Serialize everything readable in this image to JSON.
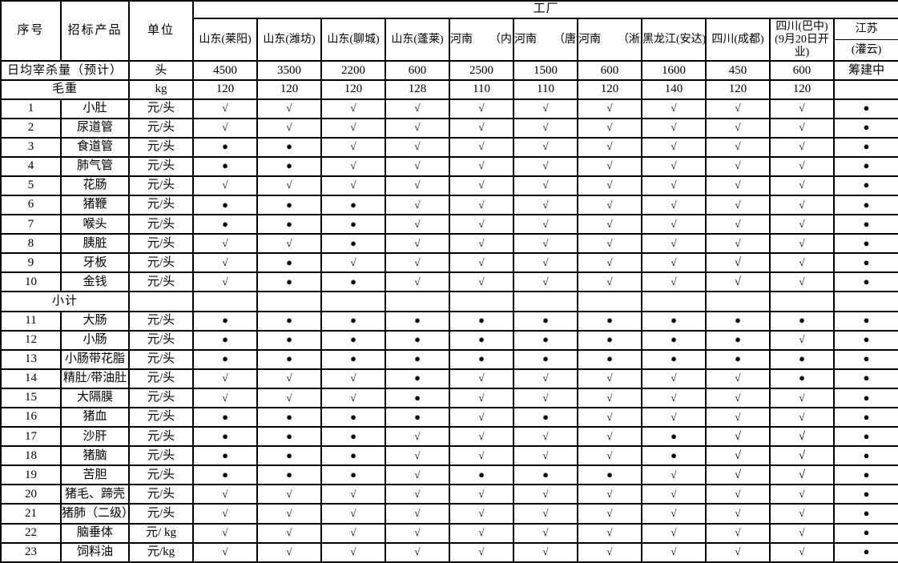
{
  "table": {
    "corner": {
      "serial": "序号",
      "product": "招标产品",
      "unit": "单位"
    },
    "factory_group_label": "工厂",
    "factories": [
      "山东(莱阳)",
      "山东(潍坊)",
      "山东(聊城)",
      "山东(蓬莱)",
      "河南　　（内乡）",
      "河南　　（唐河）",
      "河南　　（淅川）",
      "黑龙江(安达)",
      "四川(成都)",
      "四川(巴中)(9月20日开业)"
    ],
    "jiangsu": {
      "province": "江苏",
      "city": "(灌云)"
    },
    "slaughter_row": {
      "label": "日均宰杀量（预计）",
      "unit": "头",
      "values": [
        "4500",
        "3500",
        "2200",
        "600",
        "2500",
        "1500",
        "600",
        "1600",
        "450",
        "600",
        "筹建中"
      ]
    },
    "weight_row": {
      "label": "毛重",
      "unit": "kg",
      "values": [
        "120",
        "120",
        "120",
        "128",
        "110",
        "110",
        "120",
        "140",
        "120",
        "120",
        ""
      ]
    },
    "legend": {
      "check": "√",
      "dot": "●"
    },
    "subtotal_label": "小计",
    "products": [
      {
        "no": "1",
        "name": "小肚",
        "unit": "元/头",
        "marks": [
          "√",
          "√",
          "√",
          "√",
          "√",
          "√",
          "√",
          "√",
          "√",
          "√",
          "●"
        ]
      },
      {
        "no": "2",
        "name": "尿道管",
        "unit": "元/头",
        "marks": [
          "√",
          "√",
          "√",
          "√",
          "√",
          "√",
          "√",
          "√",
          "√",
          "√",
          "●"
        ]
      },
      {
        "no": "3",
        "name": "食道管",
        "unit": "元/头",
        "marks": [
          "●",
          "●",
          "√",
          "√",
          "√",
          "√",
          "√",
          "√",
          "√",
          "√",
          "●"
        ]
      },
      {
        "no": "4",
        "name": "肺气管",
        "unit": "元/头",
        "marks": [
          "●",
          "●",
          "√",
          "√",
          "√",
          "√",
          "√",
          "√",
          "√",
          "√",
          "●"
        ]
      },
      {
        "no": "5",
        "name": "花肠",
        "unit": "元/头",
        "marks": [
          "√",
          "√",
          "√",
          "√",
          "√",
          "√",
          "√",
          "√",
          "√",
          "√",
          "●"
        ]
      },
      {
        "no": "6",
        "name": "猪鞭",
        "unit": "元/头",
        "marks": [
          "●",
          "●",
          "●",
          "√",
          "√",
          "√",
          "√",
          "√",
          "√",
          "√",
          "●"
        ]
      },
      {
        "no": "7",
        "name": "喉头",
        "unit": "元/头",
        "marks": [
          "●",
          "●",
          "●",
          "√",
          "√",
          "√",
          "√",
          "√",
          "√",
          "√",
          "●"
        ]
      },
      {
        "no": "8",
        "name": "胰脏",
        "unit": "元/头",
        "marks": [
          "√",
          "√",
          "●",
          "√",
          "√",
          "√",
          "√",
          "√",
          "√",
          "√",
          "●"
        ]
      },
      {
        "no": "9",
        "name": "牙板",
        "unit": "元/头",
        "marks": [
          "√",
          "●",
          "√",
          "√",
          "√",
          "√",
          "√",
          "√",
          "√",
          "√",
          "●"
        ],
        "bold": [
          8
        ]
      },
      {
        "no": "10",
        "name": "金钱",
        "unit": "元/头",
        "marks": [
          "√",
          "●",
          "●",
          "√",
          "√",
          "√",
          "√",
          "√",
          "√",
          "√",
          "●"
        ],
        "bold": [
          8
        ]
      },
      {
        "subtotal": true
      },
      {
        "no": "11",
        "name": "大肠",
        "unit": "元/头",
        "marks": [
          "●",
          "●",
          "●",
          "●",
          "●",
          "●",
          "●",
          "●",
          "●",
          "●",
          "●"
        ]
      },
      {
        "no": "12",
        "name": "小肠",
        "unit": "元/头",
        "marks": [
          "●",
          "●",
          "●",
          "●",
          "●",
          "●",
          "●",
          "●",
          "●",
          "√",
          "●"
        ]
      },
      {
        "no": "13",
        "name": "小肠带花脂",
        "unit": "元/头",
        "marks": [
          "●",
          "●",
          "●",
          "●",
          "●",
          "●",
          "●",
          "●",
          "●",
          "●",
          "●"
        ]
      },
      {
        "no": "14",
        "name": "精肚/带油肚",
        "unit": "元/头",
        "marks": [
          "√",
          "√",
          "√",
          "●",
          "√",
          "√",
          "√",
          "√",
          "√",
          "●",
          "●"
        ]
      },
      {
        "no": "15",
        "name": "大隔膜",
        "unit": "元/头",
        "marks": [
          "√",
          "√",
          "√",
          "●",
          "√",
          "√",
          "√",
          "√",
          "√",
          "√",
          "●"
        ]
      },
      {
        "no": "16",
        "name": "猪血",
        "unit": "元/头",
        "marks": [
          "●",
          "●",
          "●",
          "●",
          "√",
          "●",
          "√",
          "√",
          "√",
          "√",
          "●"
        ]
      },
      {
        "no": "17",
        "name": "沙肝",
        "unit": "元/头",
        "marks": [
          "●",
          "●",
          "●",
          "√",
          "√",
          "√",
          "√",
          "●",
          "√",
          "√",
          "●"
        ],
        "bold": [
          8,
          9
        ]
      },
      {
        "no": "18",
        "name": "猪脑",
        "unit": "元/头",
        "marks": [
          "●",
          "●",
          "●",
          "√",
          "√",
          "√",
          "√",
          "●",
          "√",
          "√",
          "●"
        ],
        "bold": [
          8,
          9
        ]
      },
      {
        "no": "19",
        "name": "苦胆",
        "unit": "元/头",
        "marks": [
          "●",
          "●",
          "●",
          "√",
          "●",
          "●",
          "●",
          "√",
          "√",
          "√",
          "●"
        ],
        "bold": [
          8,
          9
        ]
      },
      {
        "no": "20",
        "name": "猪毛、蹄壳",
        "unit": "元/头",
        "marks": [
          "√",
          "√",
          "√",
          "√",
          "√",
          "√",
          "√",
          "√",
          "√",
          "√",
          "●"
        ]
      },
      {
        "no": "21",
        "name": "猪肺（二级）",
        "unit": "元/头",
        "marks": [
          "√",
          "√",
          "√",
          "√",
          "√",
          "√",
          "√",
          "√",
          "√",
          "√",
          "●"
        ]
      },
      {
        "no": "22",
        "name": "脑垂体",
        "unit": "元/ kg",
        "marks": [
          "√",
          "√",
          "√",
          "√",
          "√",
          "√",
          "√",
          "√",
          "√",
          "√",
          "●"
        ]
      },
      {
        "no": "23",
        "name": "饲料油",
        "unit": "元/kg",
        "marks": [
          "√",
          "√",
          "√",
          "√",
          "√",
          "√",
          "√",
          "√",
          "√",
          "√",
          "●"
        ]
      }
    ]
  }
}
